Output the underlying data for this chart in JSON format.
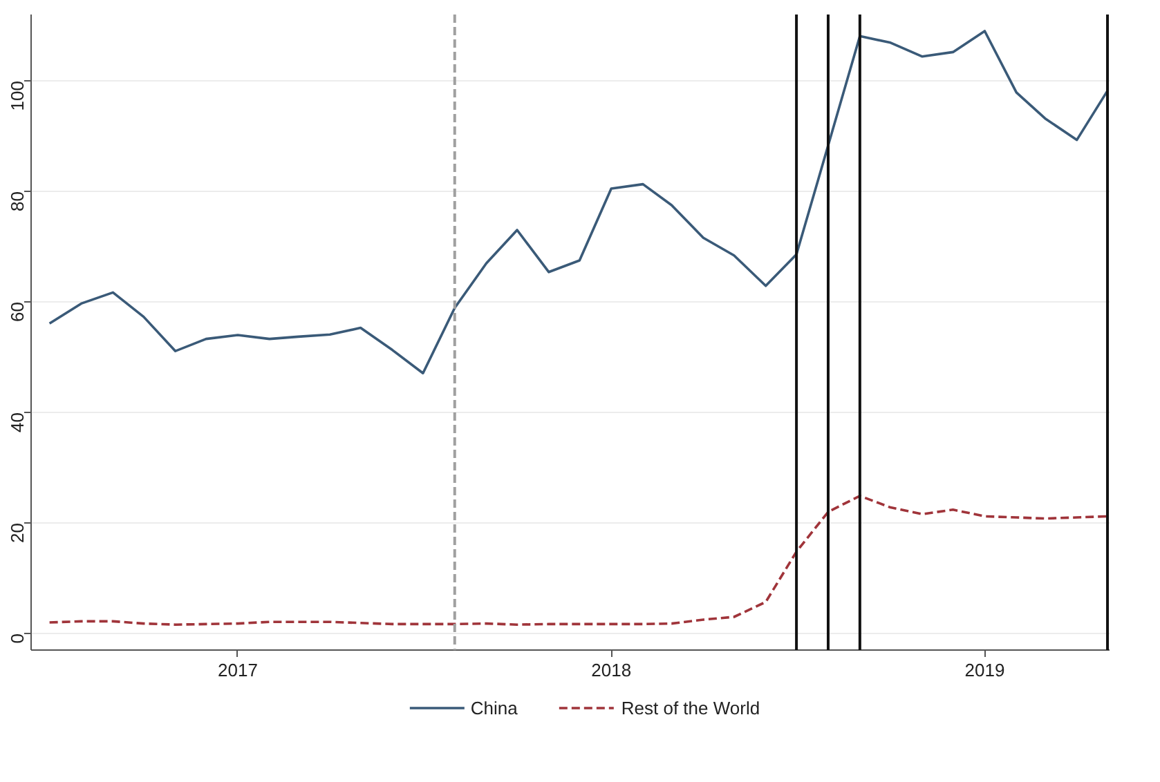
{
  "chart_data": {
    "type": "line",
    "x": [
      "2016-07",
      "2016-08",
      "2016-09",
      "2016-10",
      "2016-11",
      "2016-12",
      "2017-01",
      "2017-02",
      "2017-03",
      "2017-04",
      "2017-05",
      "2017-06",
      "2017-07",
      "2017-08",
      "2017-09",
      "2017-10",
      "2017-11",
      "2017-12",
      "2018-01",
      "2018-02",
      "2018-03",
      "2018-04",
      "2018-05",
      "2018-06",
      "2018-07",
      "2018-08",
      "2018-09",
      "2018-10",
      "2018-11",
      "2018-12",
      "2019-01",
      "2019-02",
      "2019-03",
      "2019-04",
      "2019-05"
    ],
    "series": [
      {
        "name": "China",
        "color": "#3a5a78",
        "line_style": "solid",
        "values": [
          56.1,
          59.7,
          61.7,
          57.3,
          51.1,
          53.3,
          54.0,
          53.3,
          53.7,
          54.1,
          55.3,
          51.3,
          47.1,
          58.9,
          67.0,
          73.0,
          65.4,
          67.5,
          80.5,
          81.3,
          77.5,
          71.6,
          68.4,
          62.9,
          68.6,
          88.3,
          108.1,
          106.9,
          104.4,
          105.2,
          109.0,
          97.9,
          93.2,
          89.3,
          98.2
        ]
      },
      {
        "name": "Rest of the World",
        "color": "#a0343a",
        "line_style": "dashed",
        "values": [
          2.0,
          2.2,
          2.2,
          1.8,
          1.6,
          1.7,
          1.8,
          2.1,
          2.1,
          2.1,
          1.9,
          1.7,
          1.7,
          1.7,
          1.8,
          1.6,
          1.7,
          1.7,
          1.7,
          1.7,
          1.8,
          2.5,
          3.0,
          5.7,
          14.8,
          22.0,
          24.9,
          22.8,
          21.6,
          22.4,
          21.2,
          21.0,
          20.8,
          21.0,
          21.2
        ]
      }
    ],
    "xlim": [
      "2016-06-13",
      "2019-05-03"
    ],
    "xticks": [
      {
        "value": "2017-01",
        "label": "2017"
      },
      {
        "value": "2018-01",
        "label": "2018"
      },
      {
        "value": "2019-01",
        "label": "2019"
      }
    ],
    "ylim": [
      -3,
      112
    ],
    "yticks": [
      0,
      20,
      40,
      60,
      80,
      100
    ],
    "ref_lines": [
      {
        "axis": "x",
        "value": "2017-08",
        "color": "#a0a0a0",
        "line_style": "dashed"
      },
      {
        "axis": "x",
        "value": "2018-07",
        "color": "#111111",
        "line_style": "solid"
      },
      {
        "axis": "x",
        "value": "2018-08",
        "color": "#111111",
        "line_style": "solid"
      },
      {
        "axis": "x",
        "value": "2018-09",
        "color": "#111111",
        "line_style": "solid"
      },
      {
        "axis": "x",
        "value": "2019-05",
        "color": "#111111",
        "line_style": "solid"
      }
    ],
    "grid": "y",
    "legend": "bottom"
  }
}
